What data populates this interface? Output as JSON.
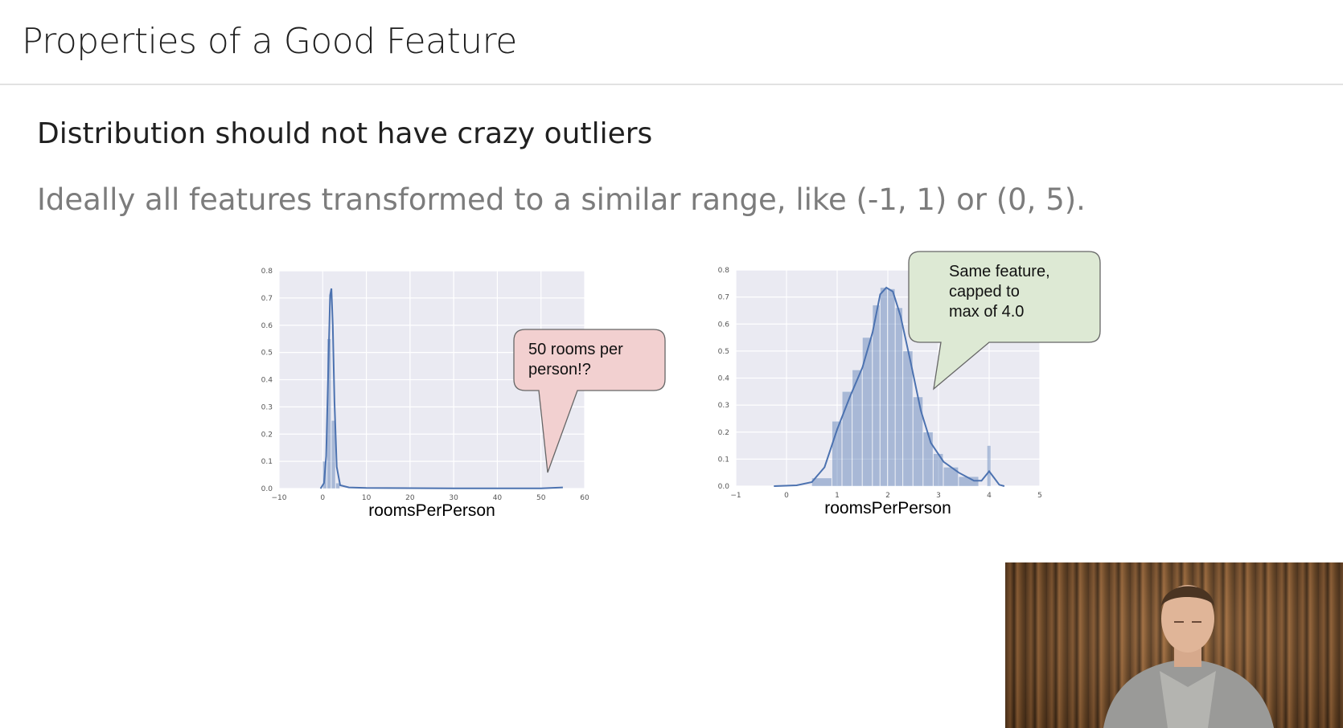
{
  "slide": {
    "title": "Properties of a Good Feature",
    "heading": "Distribution should not have crazy outliers",
    "subtext": "Ideally all features transformed to a similar range, like (-1, 1) or (0, 5)."
  },
  "chart_data": [
    {
      "type": "histogram",
      "xlabel": "roomsPerPerson",
      "ylabel": "",
      "xlim": [
        -10,
        60
      ],
      "ylim": [
        0,
        0.8
      ],
      "xticks": [
        "−10",
        "0",
        "10",
        "20",
        "30",
        "40",
        "50",
        "60"
      ],
      "yticks": [
        "0.0",
        "0.1",
        "0.2",
        "0.3",
        "0.4",
        "0.5",
        "0.6",
        "0.7",
        "0.8"
      ],
      "grid": true,
      "bars": [
        {
          "x0": 0.0,
          "x1": 1.0,
          "y": 0.1
        },
        {
          "x0": 1.0,
          "x1": 2.0,
          "y": 0.55
        },
        {
          "x0": 2.0,
          "x1": 3.0,
          "y": 0.25
        },
        {
          "x0": 3.0,
          "x1": 4.0,
          "y": 0.02
        }
      ],
      "kde": [
        [
          -0.5,
          0
        ],
        [
          0.3,
          0.02
        ],
        [
          0.8,
          0.12
        ],
        [
          1.3,
          0.45
        ],
        [
          1.7,
          0.71
        ],
        [
          2.0,
          0.735
        ],
        [
          2.3,
          0.6
        ],
        [
          2.7,
          0.32
        ],
        [
          3.2,
          0.08
        ],
        [
          4.0,
          0.012
        ],
        [
          6,
          0.004
        ],
        [
          10,
          0.002
        ],
        [
          30,
          0.001
        ],
        [
          50,
          0.001
        ],
        [
          55,
          0.004
        ]
      ],
      "callout": {
        "lines": [
          "50 rooms per",
          "person!?"
        ],
        "fill": "#f2d0d0",
        "points_to_x": 51
      }
    },
    {
      "type": "histogram",
      "xlabel": "roomsPerPerson",
      "ylabel": "",
      "xlim": [
        -1,
        5
      ],
      "ylim": [
        0,
        0.8
      ],
      "xticks": [
        "−1",
        "0",
        "1",
        "2",
        "3",
        "4",
        "5"
      ],
      "yticks": [
        "0.0",
        "0.1",
        "0.2",
        "0.3",
        "0.4",
        "0.5",
        "0.6",
        "0.7",
        "0.8"
      ],
      "grid": true,
      "bars": [
        {
          "x0": 0.5,
          "x1": 0.9,
          "y": 0.03
        },
        {
          "x0": 0.9,
          "x1": 1.1,
          "y": 0.24
        },
        {
          "x0": 1.1,
          "x1": 1.3,
          "y": 0.35
        },
        {
          "x0": 1.3,
          "x1": 1.5,
          "y": 0.43
        },
        {
          "x0": 1.5,
          "x1": 1.7,
          "y": 0.55
        },
        {
          "x0": 1.7,
          "x1": 1.85,
          "y": 0.67
        },
        {
          "x0": 1.85,
          "x1": 2.0,
          "y": 0.735
        },
        {
          "x0": 2.0,
          "x1": 2.15,
          "y": 0.73
        },
        {
          "x0": 2.15,
          "x1": 2.3,
          "y": 0.66
        },
        {
          "x0": 2.3,
          "x1": 2.5,
          "y": 0.5
        },
        {
          "x0": 2.5,
          "x1": 2.7,
          "y": 0.33
        },
        {
          "x0": 2.7,
          "x1": 2.9,
          "y": 0.2
        },
        {
          "x0": 2.9,
          "x1": 3.1,
          "y": 0.12
        },
        {
          "x0": 3.1,
          "x1": 3.4,
          "y": 0.07
        },
        {
          "x0": 3.4,
          "x1": 3.8,
          "y": 0.035
        },
        {
          "x0": 3.96,
          "x1": 4.04,
          "y": 0.15
        }
      ],
      "kde": [
        [
          -0.25,
          0
        ],
        [
          0.2,
          0.003
        ],
        [
          0.5,
          0.015
        ],
        [
          0.75,
          0.07
        ],
        [
          1.0,
          0.21
        ],
        [
          1.25,
          0.33
        ],
        [
          1.5,
          0.44
        ],
        [
          1.7,
          0.57
        ],
        [
          1.85,
          0.71
        ],
        [
          1.97,
          0.735
        ],
        [
          2.1,
          0.72
        ],
        [
          2.25,
          0.63
        ],
        [
          2.45,
          0.46
        ],
        [
          2.65,
          0.28
        ],
        [
          2.85,
          0.16
        ],
        [
          3.1,
          0.09
        ],
        [
          3.4,
          0.05
        ],
        [
          3.7,
          0.02
        ],
        [
          3.85,
          0.02
        ],
        [
          4.0,
          0.055
        ],
        [
          4.1,
          0.03
        ],
        [
          4.2,
          0.005
        ],
        [
          4.3,
          0
        ]
      ],
      "callout": {
        "lines": [
          "Same feature,",
          "capped to",
          "max of 4.0"
        ],
        "fill": "#dde9d4",
        "points_to_x": 2.95
      }
    }
  ],
  "video": {
    "description_icon": "presenter-video-icon"
  }
}
